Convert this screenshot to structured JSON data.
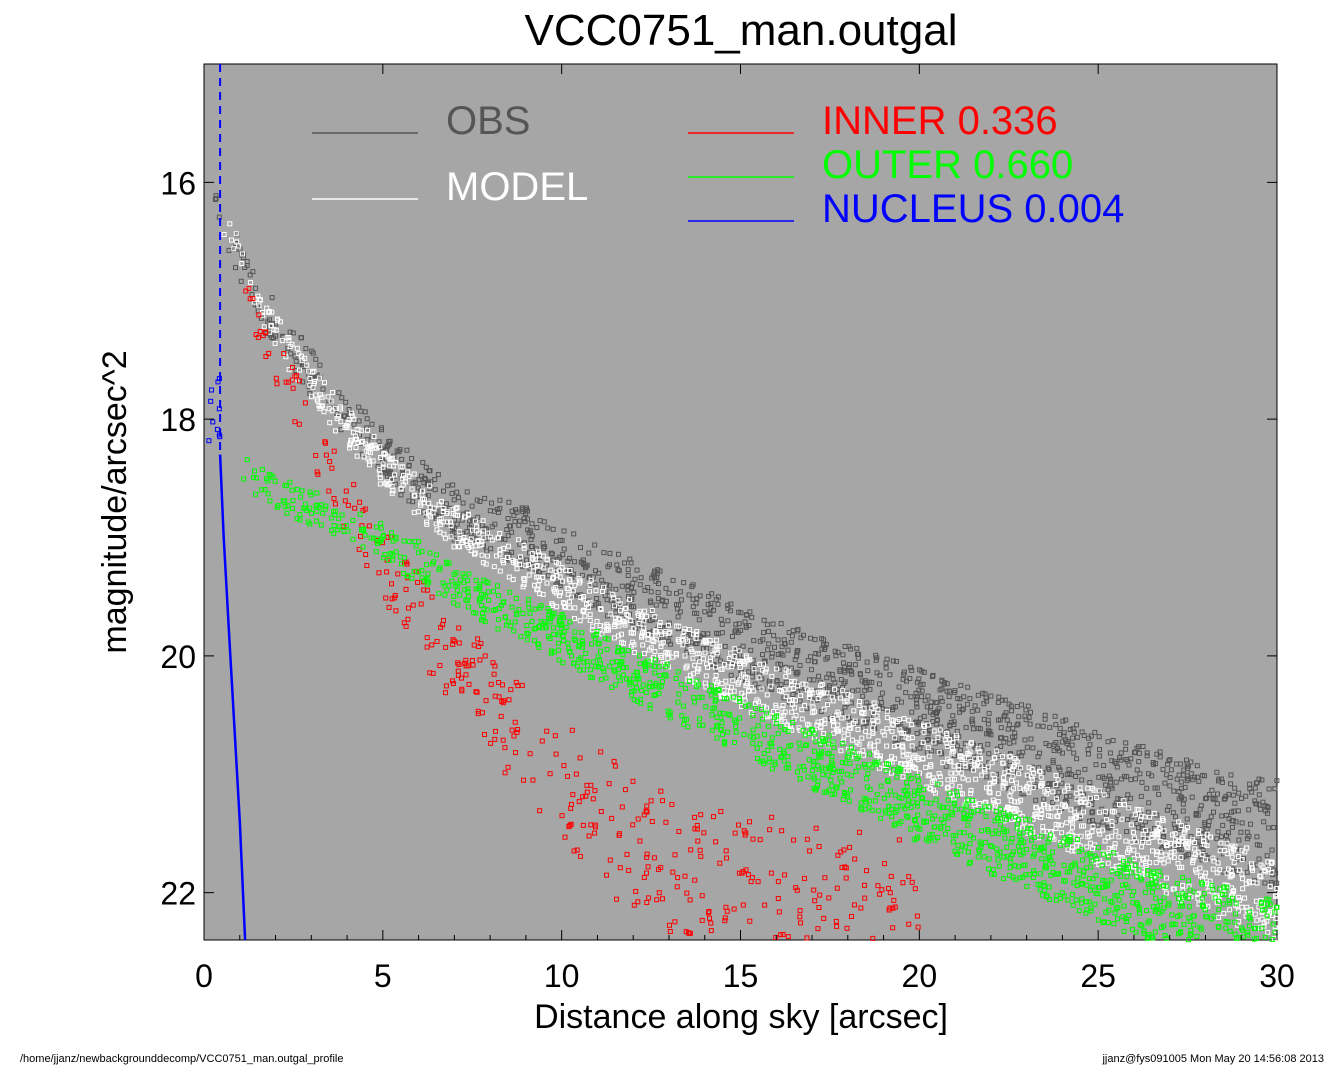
{
  "chart_data": {
    "type": "scatter",
    "title": "VCC0751_man.outgal",
    "xlabel": "Distance along sky [arcsec]",
    "ylabel": "magnitude/arcsec^2",
    "xlim": [
      0,
      30
    ],
    "ylim": [
      15,
      22.4
    ],
    "y_inverted": true,
    "x_ticks": [
      0,
      5,
      10,
      15,
      20,
      25,
      30
    ],
    "y_ticks": [
      16,
      18,
      20,
      22
    ],
    "x_tick_labels": [
      "0",
      "5",
      "10",
      "15",
      "20",
      "25",
      "30"
    ],
    "y_tick_labels": [
      "16",
      "18",
      "20",
      "22"
    ],
    "grid": false,
    "legend_position": "top",
    "background_color": "#a6a6a6",
    "legend": [
      {
        "key": "obs",
        "label": "OBS",
        "value": "",
        "color": "#555555"
      },
      {
        "key": "model",
        "label": "MODEL",
        "value": "",
        "color": "#ffffff"
      },
      {
        "key": "inner",
        "label": "INNER",
        "value": "0.336",
        "color": "#ff0000"
      },
      {
        "key": "outer",
        "label": "OUTER",
        "value": "0.660",
        "color": "#00ff00"
      },
      {
        "key": "nucleus",
        "label": "NUCLEUS",
        "value": "0.004",
        "color": "#0000ff"
      }
    ],
    "series": [
      {
        "key": "obs",
        "color": "#555555",
        "x": [
          0.3,
          0.8,
          1.5,
          2.5,
          3.5,
          5,
          7,
          9,
          11,
          13,
          15,
          17,
          19,
          21,
          23,
          25,
          27,
          29,
          30
        ],
        "y": [
          16.1,
          16.5,
          17.0,
          17.4,
          17.8,
          18.3,
          18.8,
          19.0,
          19.35,
          19.6,
          19.9,
          20.15,
          20.35,
          20.6,
          20.8,
          21.05,
          21.25,
          21.45,
          21.5
        ],
        "y_spread": 0.45
      },
      {
        "key": "model",
        "color": "#ffffff",
        "x": [
          0.3,
          0.8,
          1.5,
          2.5,
          3.5,
          5,
          7,
          9,
          11,
          13,
          15,
          17,
          19,
          21,
          23,
          25,
          27,
          29,
          30
        ],
        "y": [
          16.1,
          16.5,
          17.0,
          17.5,
          17.9,
          18.4,
          18.9,
          19.25,
          19.6,
          19.9,
          20.2,
          20.45,
          20.7,
          20.95,
          21.2,
          21.45,
          21.7,
          21.95,
          22.05
        ],
        "y_spread": 0.35
      },
      {
        "key": "inner",
        "color": "#ff0000",
        "x": [
          1,
          2,
          3,
          4,
          5,
          6,
          7,
          8,
          9,
          10,
          11,
          12,
          14,
          16,
          18,
          20
        ],
        "y": [
          16.9,
          17.5,
          18.1,
          18.7,
          19.2,
          19.65,
          20.05,
          20.4,
          20.75,
          21.05,
          21.35,
          21.6,
          21.95,
          22.1,
          22.3,
          22.35
        ],
        "y_spread": 0.9
      },
      {
        "key": "outer",
        "color": "#00ff00",
        "x": [
          1.0,
          2,
          3,
          4,
          5,
          6,
          7,
          8,
          10,
          12,
          14,
          16,
          18,
          20,
          22,
          24,
          26,
          28,
          30
        ],
        "y": [
          18.45,
          18.6,
          18.75,
          18.9,
          19.05,
          19.2,
          19.4,
          19.55,
          19.85,
          20.15,
          20.45,
          20.75,
          21.0,
          21.3,
          21.55,
          21.8,
          22.05,
          22.25,
          22.4
        ],
        "y_spread": 0.35
      },
      {
        "key": "nucleus",
        "color": "#0000ff",
        "x": [
          0.45,
          0.55,
          0.7,
          0.85,
          1.0,
          1.15
        ],
        "y": [
          18.3,
          19.0,
          19.8,
          20.6,
          21.4,
          22.4
        ],
        "y_spread": 0.05
      }
    ]
  },
  "footer": {
    "path": "/home/jjanz/newbackgrounddecomp/VCC0751_man.outgal_profile",
    "stamp": "jjanz@fys091005  Mon May 20 14:56:08 2013"
  }
}
